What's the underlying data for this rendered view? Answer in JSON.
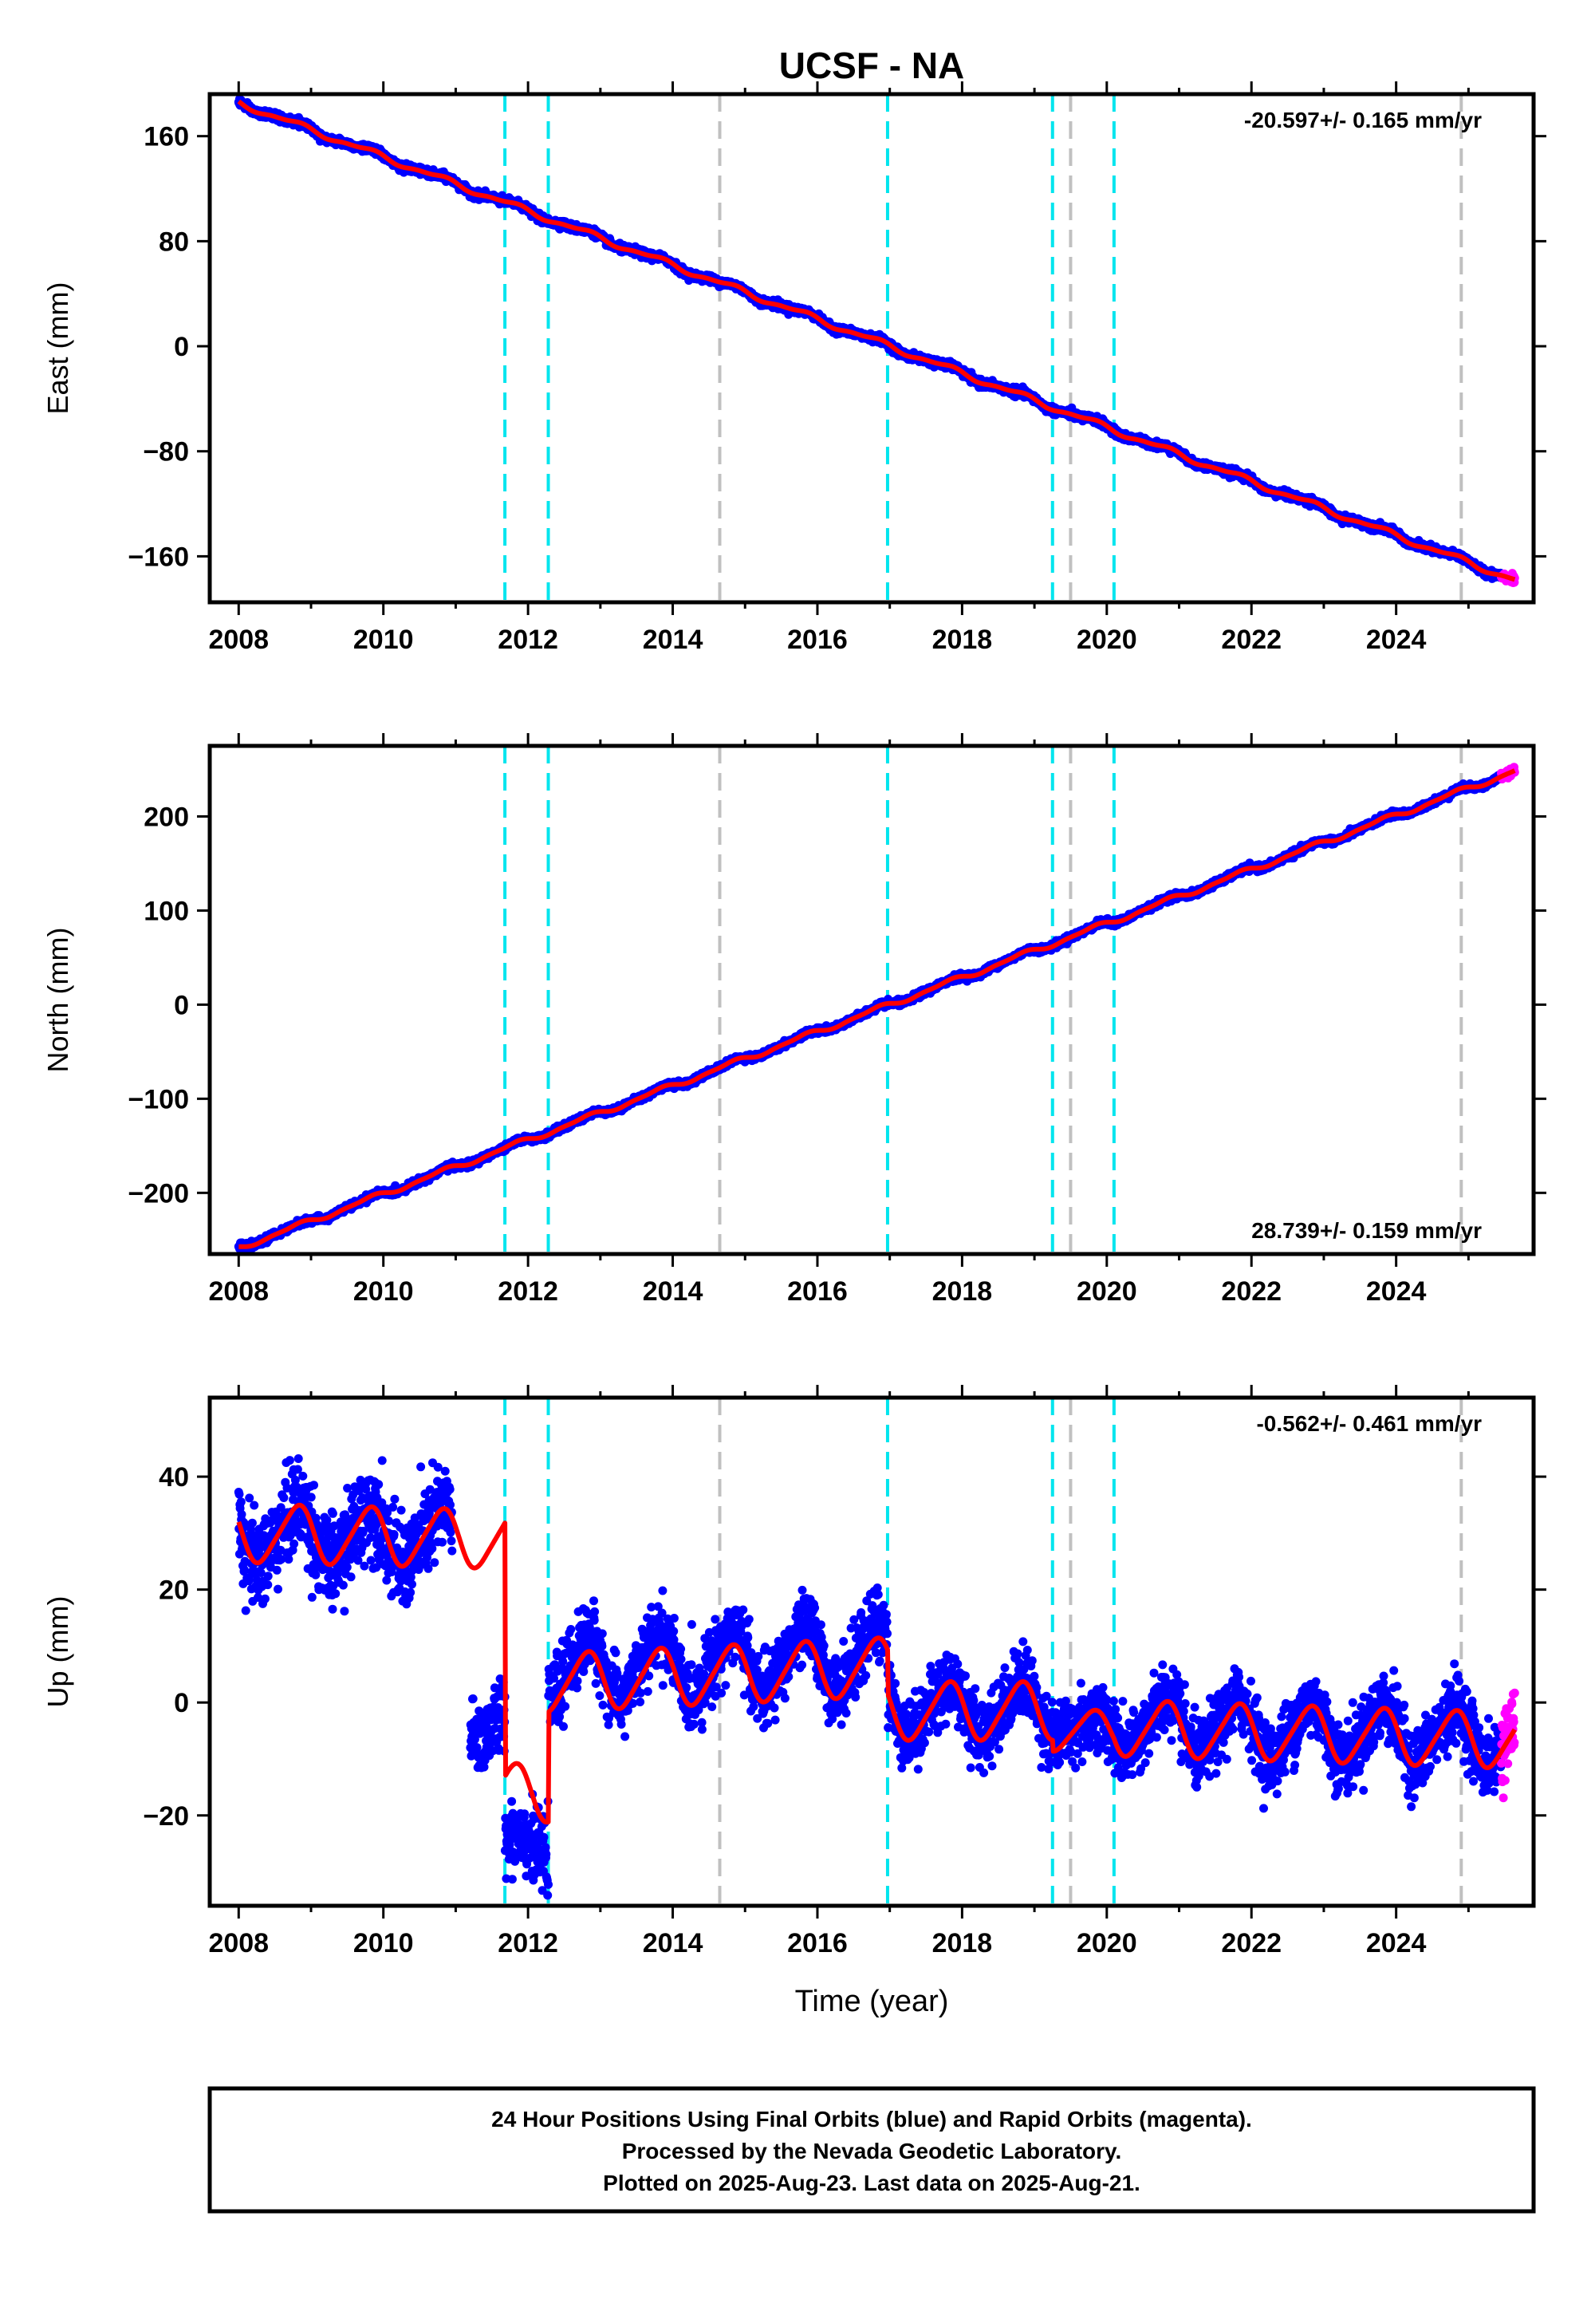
{
  "title": "UCSF - NA",
  "colors": {
    "final": "#0000ff",
    "rapid": "#ff00ff",
    "model": "#ff0000",
    "equipment_change": "#00e5ee",
    "earthquake": "#c0c0c0",
    "frame": "#000000"
  },
  "chart_data": [
    {
      "type": "scatter",
      "name": "east",
      "ylabel": "East (mm)",
      "xlabel": "",
      "xlim": [
        2007.6,
        2025.9
      ],
      "ylim": [
        -195,
        192
      ],
      "xticks": [
        2008,
        2010,
        2012,
        2014,
        2016,
        2018,
        2020,
        2022,
        2024
      ],
      "yticks": [
        -160,
        -80,
        0,
        80,
        160
      ],
      "rate_label": "-20.597+/- 0.165 mm/yr",
      "rate_position": "top-right",
      "trend": {
        "ref_year": 2017.0,
        "value_at_ref": 0,
        "rate": -20.597
      },
      "seasonal": {
        "annual_amplitude": 2.0,
        "semiannual_amplitude": 0.8
      },
      "offsets": [],
      "noise_sd": 1.4,
      "rapid_range": [
        2025.45,
        2025.64
      ]
    },
    {
      "type": "scatter",
      "name": "north",
      "ylabel": "North (mm)",
      "xlabel": "",
      "xlim": [
        2007.6,
        2025.9
      ],
      "ylim": [
        -265,
        275
      ],
      "xticks": [
        2008,
        2010,
        2012,
        2014,
        2016,
        2018,
        2020,
        2022,
        2024
      ],
      "yticks": [
        -200,
        -100,
        0,
        100,
        200
      ],
      "rate_label": "28.739+/- 0.159 mm/yr",
      "rate_position": "bottom-right",
      "trend": {
        "ref_year": 2017.0,
        "value_at_ref": 0,
        "rate": 28.739
      },
      "seasonal": {
        "annual_amplitude": 2.5,
        "semiannual_amplitude": 1.0
      },
      "offsets": [],
      "noise_sd": 1.6,
      "rapid_range": [
        2025.45,
        2025.64
      ]
    },
    {
      "type": "scatter",
      "name": "up",
      "ylabel": "Up (mm)",
      "xlabel": "Time (year)",
      "xlim": [
        2007.6,
        2025.9
      ],
      "ylim": [
        -36,
        54
      ],
      "xticks": [
        2008,
        2010,
        2012,
        2014,
        2016,
        2018,
        2020,
        2022,
        2024
      ],
      "yticks": [
        -20,
        0,
        20,
        40
      ],
      "rate_label": "-0.562+/- 0.461 mm/yr",
      "rate_position": "top-right",
      "segments": [
        {
          "start": 2008.0,
          "end": 2010.95,
          "base": 30.0,
          "amplitude": 5.0,
          "rate": -0.3,
          "noise_sd": 4.0
        },
        {
          "start": 2011.2,
          "end": 2011.68,
          "base": -3.5,
          "amplitude": 3.0,
          "rate": 0.0,
          "noise_sd": 3.2
        },
        {
          "start": 2011.68,
          "end": 2012.28,
          "base": -25.0,
          "amplitude": 2.0,
          "rate": 0.0,
          "noise_sd": 3.0
        },
        {
          "start": 2012.28,
          "end": 2016.97,
          "base": 5.5,
          "amplitude": 5.5,
          "rate": 0.6,
          "noise_sd": 3.0
        },
        {
          "start": 2016.97,
          "end": 2019.25,
          "base": -1.0,
          "amplitude": 4.5,
          "rate": 0.0,
          "noise_sd": 3.0
        },
        {
          "start": 2019.25,
          "end": 2020.1,
          "base": -4.5,
          "amplitude": 2.0,
          "rate": 0.0,
          "noise_sd": 3.0
        },
        {
          "start": 2020.1,
          "end": 2025.64,
          "base": -4.0,
          "amplitude": 4.8,
          "rate": -0.4,
          "noise_sd": 3.0
        }
      ],
      "model_segments": [
        {
          "start": 2008.0,
          "end": 2011.68,
          "base": 30.0,
          "amplitude": 5.0,
          "rate": -0.3
        },
        {
          "start": 2011.68,
          "end": 2012.28,
          "base": -16.0,
          "amplitude": 5.0,
          "rate": 0.0
        },
        {
          "start": 2012.28,
          "end": 2016.97,
          "base": 3.5,
          "amplitude": 5.0,
          "rate": 0.6
        },
        {
          "start": 2016.97,
          "end": 2019.25,
          "base": -1.5,
          "amplitude": 5.0,
          "rate": 0.0
        },
        {
          "start": 2019.25,
          "end": 2020.1,
          "base": -5.0,
          "amplitude": 3.5,
          "rate": 0.0
        },
        {
          "start": 2020.1,
          "end": 2025.64,
          "base": -4.5,
          "amplitude": 4.8,
          "rate": -0.4
        }
      ],
      "rapid_range": [
        2025.45,
        2025.64
      ]
    }
  ],
  "event_lines": [
    {
      "year": 2011.68,
      "kind": "equipment_change"
    },
    {
      "year": 2012.28,
      "kind": "equipment_change"
    },
    {
      "year": 2014.65,
      "kind": "earthquake"
    },
    {
      "year": 2016.97,
      "kind": "equipment_change"
    },
    {
      "year": 2019.25,
      "kind": "equipment_change"
    },
    {
      "year": 2019.5,
      "kind": "earthquake"
    },
    {
      "year": 2020.1,
      "kind": "equipment_change"
    },
    {
      "year": 2024.9,
      "kind": "earthquake"
    }
  ],
  "footer": {
    "line1": "24 Hour Positions Using Final Orbits (blue) and Rapid Orbits (magenta).",
    "line2": "Processed by the Nevada Geodetic Laboratory.",
    "line3": "Plotted on 2025-Aug-23. Last data on 2025-Aug-21."
  }
}
